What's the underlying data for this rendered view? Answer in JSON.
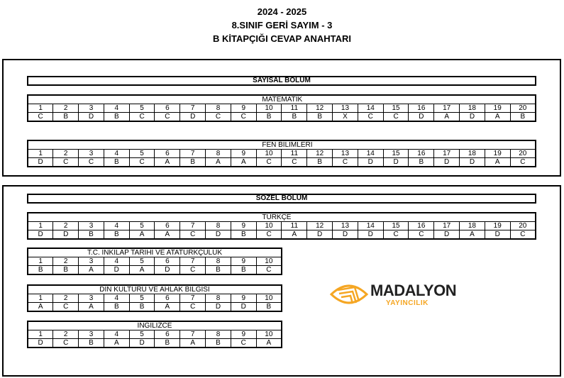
{
  "header": {
    "year": "2024 - 2025",
    "exam": "8.SINIF GERİ SAYIM - 3",
    "booklet": "B KİTAPÇIĞI CEVAP ANAHTARI"
  },
  "sections": {
    "sayisal": "SAYISAL  BOLUM",
    "sozel": "SOZEL BOLUM"
  },
  "subjects": {
    "matematik": {
      "title": "MATEMATIK",
      "answers": [
        "C",
        "B",
        "D",
        "B",
        "C",
        "C",
        "D",
        "C",
        "C",
        "B",
        "B",
        "B",
        "X",
        "C",
        "C",
        "D",
        "A",
        "D",
        "A",
        "B"
      ]
    },
    "fen": {
      "title": "FEN BILIMLERI",
      "answers": [
        "D",
        "C",
        "C",
        "B",
        "C",
        "A",
        "B",
        "A",
        "A",
        "C",
        "C",
        "B",
        "C",
        "D",
        "D",
        "B",
        "D",
        "D",
        "A",
        "C"
      ]
    },
    "turkce": {
      "title": "TURKÇE",
      "answers": [
        "D",
        "D",
        "B",
        "B",
        "A",
        "A",
        "C",
        "D",
        "B",
        "C",
        "A",
        "D",
        "D",
        "D",
        "C",
        "C",
        "D",
        "A",
        "D",
        "C"
      ]
    },
    "inkilap": {
      "title": "T.C. INKILAP TARIHI VE ATATURKÇULUK",
      "answers": [
        "B",
        "B",
        "A",
        "D",
        "A",
        "D",
        "C",
        "B",
        "B",
        "C"
      ]
    },
    "din": {
      "title": "DIN KULTURU VE AHLAK BILGISI",
      "answers": [
        "A",
        "C",
        "A",
        "B",
        "B",
        "A",
        "C",
        "D",
        "D",
        "B"
      ]
    },
    "ingilizce": {
      "title": "INGILIZCE",
      "answers": [
        "D",
        "C",
        "B",
        "A",
        "D",
        "B",
        "A",
        "B",
        "C",
        "A"
      ]
    }
  },
  "logo": {
    "name": "MADALYON",
    "sub": "YAYINCILIK",
    "accent": "#f5a623"
  }
}
